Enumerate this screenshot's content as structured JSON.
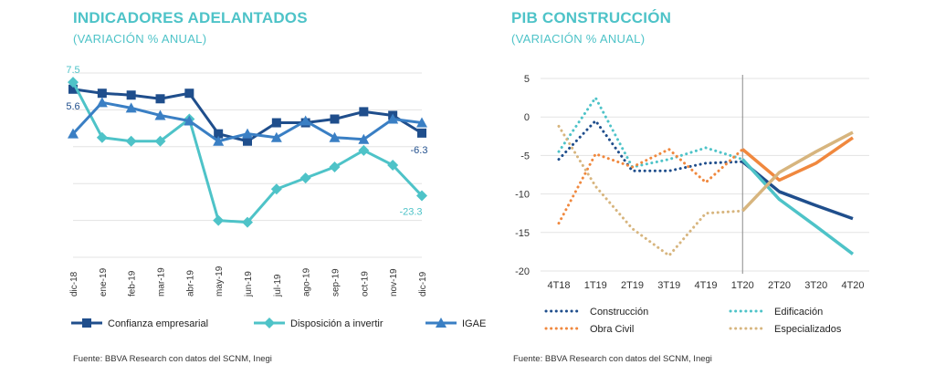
{
  "left_panel": {
    "title": "INDICADORES ADELANTADOS",
    "subtitle": "(VARIACIÓN  % ANUAL)",
    "source": "Fuente: BBVA Research con datos del SCNM, Inegi"
  },
  "right_panel": {
    "title": "PIB CONSTRUCCIÓN",
    "subtitle": "(VARIACIÓN  % ANUAL)",
    "source": "Fuente: BBVA Research  con datos del SCNM, Inegi"
  },
  "chart_data": [
    {
      "type": "line",
      "title": "INDICADORES ADELANTADOS",
      "subtitle": "(VARIACIÓN  % ANUAL)",
      "categories": [
        "dic-18",
        "ene-19",
        "feb-19",
        "mar-19",
        "abr-19",
        "may-19",
        "jun-19",
        "jul-19",
        "ago-19",
        "sep-19",
        "oct-19",
        "nov-19",
        "dic-19"
      ],
      "ylim": [
        -40,
        10
      ],
      "grid": "horizontal",
      "legend_position": "bottom",
      "series": [
        {
          "name": "Confianza empresarial",
          "color": "#1f4e8c",
          "marker": "square",
          "values": [
            5.6,
            4.5,
            4.0,
            3.0,
            4.5,
            -6.5,
            -8.5,
            -3.5,
            -3.5,
            -2.5,
            -0.5,
            -1.5,
            -6.3
          ]
        },
        {
          "name": "Disposición a invertir",
          "color": "#4ec3c8",
          "marker": "diamond",
          "values": [
            7.5,
            -7.5,
            -8.5,
            -8.5,
            -2.5,
            -30.0,
            -30.5,
            -21.5,
            -18.5,
            -15.5,
            -11.0,
            -15.0,
            -23.3
          ]
        },
        {
          "name": "IGAE",
          "color": "#3a7fc4",
          "marker": "triangle",
          "values": [
            -6.5,
            2.0,
            0.5,
            -1.5,
            -3.0,
            -8.5,
            -6.5,
            -7.5,
            -3.0,
            -7.5,
            -8.0,
            -2.5,
            -3.5
          ]
        }
      ],
      "data_labels": [
        {
          "series": "Disposición a invertir",
          "index": 0,
          "text": "7.5"
        },
        {
          "series": "Confianza empresarial",
          "index": 0,
          "text": "5.6"
        },
        {
          "series": "Confianza empresarial",
          "index": 12,
          "text": "-6.3"
        },
        {
          "series": "Disposición a invertir",
          "index": 12,
          "text": "-23.3"
        }
      ]
    },
    {
      "type": "line",
      "title": "PIB CONSTRUCCIÓN",
      "subtitle": "(VARIACIÓN  % ANUAL)",
      "categories": [
        "4T18",
        "1T19",
        "2T19",
        "3T19",
        "4T19",
        "1T20",
        "2T20",
        "3T20",
        "4T20"
      ],
      "ylim": [
        -20,
        5
      ],
      "yticks": [
        5,
        0,
        -5,
        -10,
        -15,
        -20
      ],
      "grid": "horizontal",
      "vertical_marker_at": "1T20",
      "legend_position": "bottom",
      "series": [
        {
          "name": "Construcción",
          "color": "#1f4e8c",
          "values": [
            -5.5,
            -0.5,
            -7.0,
            -7.0,
            -6.0,
            -5.8,
            -9.7,
            -11.5,
            -13.2
          ]
        },
        {
          "name": "Edificación",
          "color": "#4ec3c8",
          "values": [
            -4.5,
            2.5,
            -6.5,
            -5.5,
            -4.0,
            -5.5,
            -10.7,
            -14.2,
            -17.8
          ]
        },
        {
          "name": "Obra Civil",
          "color": "#f0883e",
          "values": [
            -13.8,
            -4.8,
            -6.5,
            -4.2,
            -8.5,
            -4.2,
            -8.2,
            -6.0,
            -2.7
          ]
        },
        {
          "name": "Especializados",
          "color": "#d7b57e",
          "values": [
            -1.2,
            -9.0,
            -14.5,
            -18.0,
            -12.5,
            -12.2,
            -7.2,
            -4.5,
            -2.0
          ]
        }
      ]
    }
  ]
}
